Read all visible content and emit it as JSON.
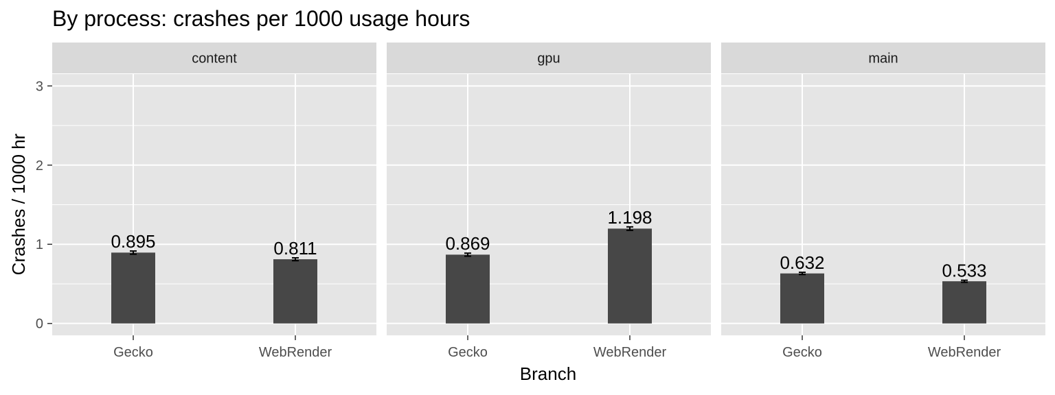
{
  "chart_data": {
    "type": "bar",
    "title": "By process: crashes per 1000 usage hours",
    "xlabel": "Branch",
    "ylabel": "Crashes / 1000 hr",
    "ylim": [
      -0.15,
      3.15
    ],
    "yticks": [
      0,
      1,
      2,
      3
    ],
    "grid": true,
    "categories": [
      "Gecko",
      "WebRender"
    ],
    "panels": [
      {
        "name": "content",
        "values": [
          0.895,
          0.811
        ],
        "labels": [
          "0.895",
          "0.811"
        ],
        "err_low": [
          0.875,
          0.793
        ],
        "err_high": [
          0.915,
          0.829
        ]
      },
      {
        "name": "gpu",
        "values": [
          0.869,
          1.198
        ],
        "labels": [
          "0.869",
          "1.198"
        ],
        "err_low": [
          0.85,
          1.176
        ],
        "err_high": [
          0.888,
          1.22
        ]
      },
      {
        "name": "main",
        "values": [
          0.632,
          0.533
        ],
        "labels": [
          "0.632",
          "0.533"
        ],
        "err_low": [
          0.618,
          0.52
        ],
        "err_high": [
          0.646,
          0.546
        ]
      }
    ],
    "colors": {
      "panel_bg": "#e5e5e5",
      "strip_bg": "#d9d9d9",
      "grid": "#ffffff",
      "bar": "#474747",
      "errorbar": "#000000",
      "tick": "#333333"
    }
  }
}
